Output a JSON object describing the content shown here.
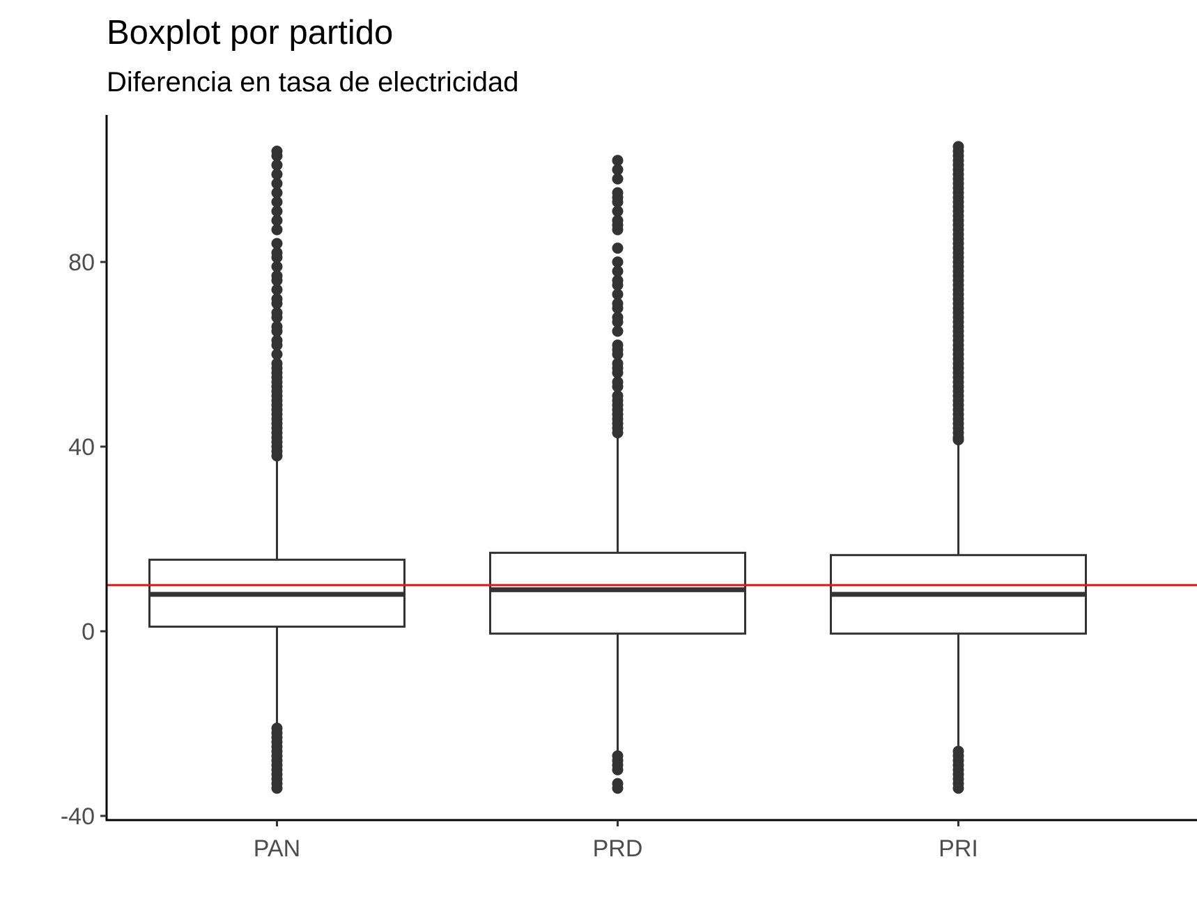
{
  "chart_data": {
    "type": "boxplot",
    "title": "Boxplot por partido",
    "subtitle": "Diferencia en tasa de electricidad",
    "xlabel": "",
    "ylabel": "",
    "ylim": [
      -40,
      112
    ],
    "y_ticks": [
      -40,
      0,
      40,
      80
    ],
    "y_tick_labels": [
      "-40",
      "0",
      "40",
      "80"
    ],
    "grid": false,
    "reference_line": {
      "y": 10,
      "color": "#e31a1c"
    },
    "colors": {
      "box": "#333333",
      "axis": "#000000",
      "tick_text": "#4d4d4d"
    },
    "categories": [
      "PAN",
      "PRD",
      "PRI"
    ],
    "boxes": [
      {
        "name": "PAN",
        "whisker_low": -20.5,
        "q1": 1,
        "median": 8,
        "q3": 15.5,
        "whisker_high": 37.5,
        "outliers": [
          -34,
          -33,
          -32,
          -31,
          -30,
          -29,
          -28,
          -27,
          -26,
          -25,
          -24,
          -23,
          -22,
          -21,
          38,
          39,
          40,
          41,
          42,
          43,
          44,
          45,
          46,
          47,
          48,
          49,
          50,
          51,
          52,
          53,
          54,
          55,
          56,
          57,
          58,
          60,
          62,
          63,
          65,
          66,
          68,
          69,
          71,
          72,
          74,
          76,
          77,
          79,
          81,
          82,
          84,
          87,
          89,
          91,
          93,
          95,
          97,
          99,
          101,
          103,
          104
        ]
      },
      {
        "name": "PRD",
        "whisker_low": -26,
        "q1": -0.5,
        "median": 9,
        "q3": 17,
        "whisker_high": 42,
        "outliers": [
          -34,
          -33,
          -30,
          -29,
          -28,
          -27,
          43,
          44,
          45,
          46,
          47,
          48,
          49,
          50,
          51,
          53,
          54,
          56,
          57,
          58,
          60,
          61,
          62,
          65,
          67,
          68,
          70,
          71,
          73,
          75,
          76,
          78,
          80,
          83,
          87,
          88,
          89,
          91,
          93,
          94,
          95,
          98,
          100,
          102
        ]
      },
      {
        "name": "PRI",
        "whisker_low": -25.5,
        "q1": -0.5,
        "median": 8,
        "q3": 16.5,
        "whisker_high": 41,
        "outliers": [
          -34,
          -33,
          -32,
          -31,
          -30,
          -29,
          -28,
          -27,
          -26,
          41.5,
          42,
          43,
          44,
          45,
          46,
          47,
          48,
          49,
          50,
          51,
          52,
          53,
          54,
          55,
          56,
          57,
          58,
          59,
          60,
          61,
          62,
          63,
          64,
          65,
          66,
          67,
          68,
          69,
          70,
          71,
          72,
          73,
          74,
          75,
          76,
          77,
          78,
          79,
          80,
          81,
          82,
          83,
          84,
          85,
          86,
          87,
          88,
          89,
          90,
          91,
          92,
          93,
          94,
          95,
          96,
          97,
          98,
          99,
          100,
          101,
          102,
          103,
          104,
          105
        ]
      }
    ]
  }
}
